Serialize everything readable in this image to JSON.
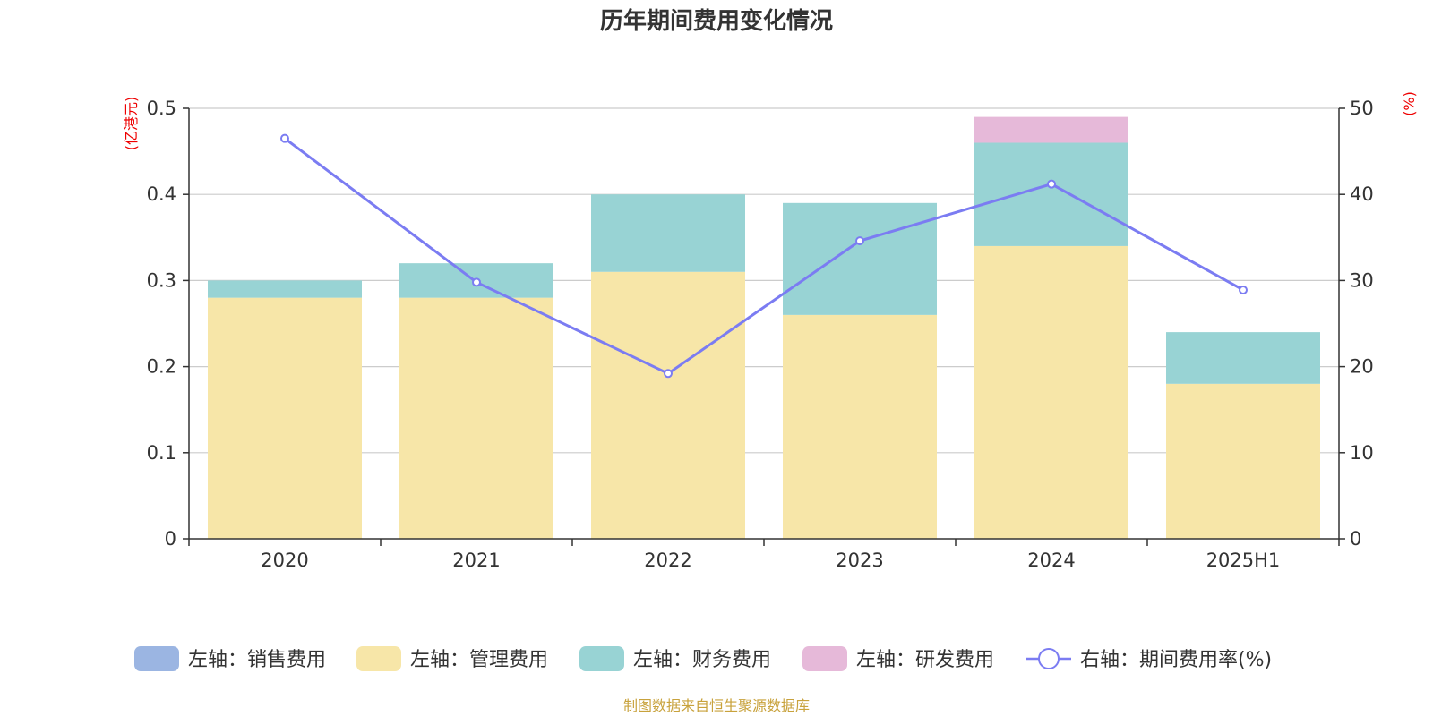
{
  "chart_data": {
    "type": "bar",
    "stacked": true,
    "title": "历年期间费用变化情况",
    "categories": [
      "2020",
      "2021",
      "2022",
      "2023",
      "2024",
      "2025H1"
    ],
    "left_axis": {
      "unit_label": "(亿港元)",
      "ylim": [
        0,
        0.5
      ],
      "ticks": [
        "0",
        "0.1",
        "0.2",
        "0.3",
        "0.4",
        "0.5"
      ]
    },
    "right_axis": {
      "unit_label": "(%)",
      "ylim": [
        0,
        50
      ],
      "ticks": [
        "0",
        "10",
        "20",
        "30",
        "40",
        "50"
      ]
    },
    "grid": true,
    "series": [
      {
        "name": "左轴：销售费用",
        "axis": "left",
        "kind": "bar",
        "color": "#9bb5e2",
        "values": [
          0,
          0,
          0,
          0,
          0,
          0
        ]
      },
      {
        "name": "左轴：管理费用",
        "axis": "left",
        "kind": "bar",
        "color": "#f7e6a8",
        "values": [
          0.28,
          0.28,
          0.31,
          0.26,
          0.34,
          0.18
        ]
      },
      {
        "name": "左轴：财务费用",
        "axis": "left",
        "kind": "bar",
        "color": "#98d3d4",
        "values": [
          0.02,
          0.04,
          0.09,
          0.13,
          0.12,
          0.06
        ]
      },
      {
        "name": "左轴：研发费用",
        "axis": "left",
        "kind": "bar",
        "color": "#e6b9d9",
        "values": [
          0,
          0,
          0,
          0,
          0.03,
          0
        ]
      },
      {
        "name": "右轴：期间费用率(%)",
        "axis": "right",
        "kind": "line",
        "color": "#7b7cf2",
        "values": [
          46.5,
          29.8,
          19.2,
          34.6,
          41.2,
          28.9
        ]
      }
    ],
    "legend_position": "bottom",
    "source": "制图数据来自恒生聚源数据库"
  }
}
